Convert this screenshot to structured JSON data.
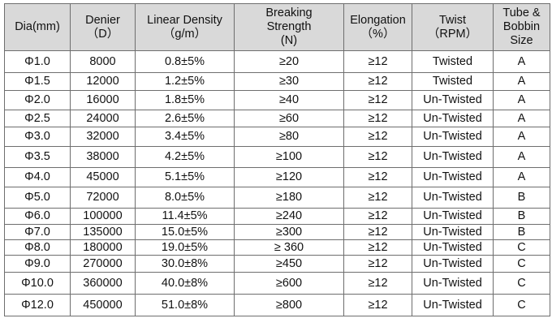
{
  "headers": [
    [
      "Dia(mm)"
    ],
    [
      "Denier",
      "（D）"
    ],
    [
      "Linear Density",
      "（g/m）"
    ],
    [
      "Breaking",
      "Strength",
      "(N)"
    ],
    [
      "Elongation",
      "（%）"
    ],
    [
      "Twist",
      "（RPM）"
    ],
    [
      "Tube &",
      "Bobbin",
      "Size"
    ]
  ],
  "rows": [
    [
      "Φ1.0",
      "8000",
      "0.8±5%",
      "≥20",
      "≥12",
      "Twisted",
      "A"
    ],
    [
      "Φ1.5",
      "12000",
      "1.2±5%",
      "≥30",
      "≥12",
      "Twisted",
      "A"
    ],
    [
      "Φ2.0",
      "16000",
      "1.8±5%",
      "≥40",
      "≥12",
      "Un-Twisted",
      "A"
    ],
    [
      "Φ2.5",
      "24000",
      "2.6±5%",
      "≥60",
      "≥12",
      "Un-Twisted",
      "A"
    ],
    [
      "Φ3.0",
      "32000",
      "3.4±5%",
      "≥80",
      "≥12",
      "Un-Twisted",
      "A"
    ],
    [
      "Φ3.5",
      "38000",
      "4.2±5%",
      "≥100",
      "≥12",
      "Un-Twisted",
      "A"
    ],
    [
      "Φ4.0",
      "45000",
      "5.1±5%",
      "≥120",
      "≥12",
      "Un-Twisted",
      "A"
    ],
    [
      "Φ5.0",
      "72000",
      "8.0±5%",
      "≥180",
      "≥12",
      "Un-Twisted",
      "B"
    ],
    [
      "Φ6.0",
      "100000",
      "11.4±5%",
      "≥240",
      "≥12",
      "Un-Twisted",
      "B"
    ],
    [
      "Φ7.0",
      "135000",
      "15.0±5%",
      "≥300",
      "≥12",
      "Un-Twisted",
      "B"
    ],
    [
      "Φ8.0",
      "180000",
      "19.0±5%",
      "≥ 360",
      "≥12",
      "Un-Twisted",
      "C"
    ],
    [
      "Φ9.0",
      "270000",
      "30.0±8%",
      "≥450",
      "≥12",
      "Un-Twisted",
      "C"
    ],
    [
      "Φ10.0",
      "360000",
      "40.0±8%",
      "≥600",
      "≥12",
      "Un-Twisted",
      "C"
    ],
    [
      "Φ12.0",
      "450000",
      "51.0±8%",
      "≥800",
      "≥12",
      "Un-Twisted",
      "C"
    ]
  ]
}
